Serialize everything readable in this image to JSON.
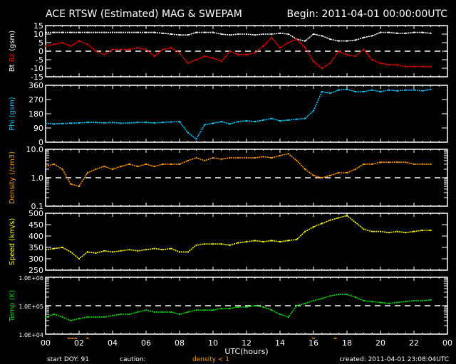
{
  "header": {
    "title": "ACE RTSW (Estimated) MAG & SWEPAM",
    "begin": "Begin: 2011-04-01 00:00:00UTC"
  },
  "footer": {
    "start_doy": "start DOY:  91",
    "caution_label": "caution:",
    "caution_text": "density < 1",
    "created": "created: 2011-04-01 23:08:04UTC"
  },
  "colors": {
    "bt": "#ffffff",
    "bz": "#ff0000",
    "phi": "#00c8ff",
    "density": "#ff9900",
    "speed": "#ffff00",
    "temp": "#00e000",
    "caution": "#ff9900"
  },
  "chart_data": {
    "type": "scatter",
    "x": {
      "label": "UTC(hours)",
      "range": [
        0,
        24
      ],
      "tick_labels": [
        "00",
        "02",
        "04",
        "06",
        "08",
        "10",
        "12",
        "14",
        "16",
        "18",
        "20",
        "22",
        "00"
      ],
      "step_hours": 0.5
    },
    "caution_marks_hours": [
      1.4,
      1.6,
      1.8,
      2.5,
      16.0,
      17.3
    ],
    "panels": [
      {
        "id": "mag",
        "ylabel_parts": [
          "Bt",
          "Bz",
          "(gsm)"
        ],
        "scale": "linear",
        "ylim": [
          -15,
          15
        ],
        "tick_labels": [
          "15",
          "10",
          "5",
          "0",
          "-5",
          "-10",
          "-15"
        ],
        "tick_values": [
          15,
          10,
          5,
          0,
          -5,
          -10,
          -15
        ],
        "reference_line": 0,
        "series": [
          {
            "name": "Bt",
            "color": "#ffffff",
            "values": [
              11,
              11,
              11,
              11,
              11,
              11,
              11,
              11,
              11,
              11,
              11,
              11,
              11,
              11,
              10.5,
              10,
              9.5,
              9.5,
              11,
              11,
              11,
              10,
              9.5,
              10,
              10,
              9.5,
              10,
              10,
              10.5,
              10,
              7,
              6,
              10,
              9,
              7,
              6,
              6,
              6.5,
              8,
              9,
              11,
              11,
              10.5,
              10.5,
              11,
              11,
              10.5
            ]
          },
          {
            "name": "Bz",
            "color": "#ff0000",
            "values": [
              3,
              4,
              5,
              3,
              6,
              4,
              0,
              -2,
              1,
              1,
              1,
              2,
              1,
              -3,
              1,
              2,
              -1,
              -7,
              -5,
              -3,
              -4,
              -6,
              0,
              -2,
              -2,
              -1,
              3,
              8,
              2,
              5,
              7,
              2,
              -6,
              -10,
              -7,
              0,
              -2,
              -3,
              1,
              -5,
              -7,
              -8,
              -8,
              -9,
              -9,
              -9,
              -9
            ]
          }
        ]
      },
      {
        "id": "phi",
        "ylabel_parts": [
          "Phi (gsm)"
        ],
        "scale": "linear",
        "ylim": [
          0,
          360
        ],
        "tick_labels": [
          "360",
          "270",
          "180",
          "90",
          "0"
        ],
        "tick_values": [
          360,
          270,
          180,
          90,
          0
        ],
        "series": [
          {
            "name": "Phi",
            "color": "#00c8ff",
            "values": [
              120,
              115,
              118,
              120,
              122,
              125,
              125,
              122,
              125,
              120,
              122,
              125,
              125,
              122,
              125,
              128,
              130,
              60,
              20,
              110,
              120,
              130,
              115,
              130,
              135,
              130,
              140,
              150,
              135,
              140,
              145,
              150,
              200,
              320,
              310,
              330,
              335,
              320,
              320,
              330,
              320,
              330,
              325,
              330,
              330,
              325,
              335
            ]
          }
        ]
      },
      {
        "id": "density",
        "ylabel_parts": [
          "Density (/cm3)"
        ],
        "scale": "log",
        "ylim": [
          0.1,
          10
        ],
        "tick_labels": [
          "10.0",
          "1.0",
          "0.1"
        ],
        "tick_values": [
          10,
          1,
          0.1
        ],
        "reference_line": 1,
        "series": [
          {
            "name": "Density",
            "color": "#ff9900",
            "values": [
              2.5,
              3,
              2,
              0.6,
              0.5,
              1.5,
              2,
              2.5,
              2,
              2.5,
              3,
              2.5,
              3,
              2.5,
              3,
              3,
              3,
              4,
              5,
              4,
              5,
              4.5,
              5,
              5,
              5,
              5,
              5.5,
              5,
              6,
              7,
              4,
              2,
              1.2,
              1,
              1.2,
              1.5,
              1.5,
              2,
              3,
              3,
              3.5,
              3.5,
              3.5,
              3.5,
              3,
              3,
              3
            ]
          }
        ]
      },
      {
        "id": "speed",
        "ylabel_parts": [
          "Speed (km/s)"
        ],
        "scale": "linear",
        "ylim": [
          250,
          500
        ],
        "tick_labels": [
          "500",
          "450",
          "400",
          "350",
          "300",
          "250"
        ],
        "tick_values": [
          500,
          450,
          400,
          350,
          300,
          250
        ],
        "series": [
          {
            "name": "Speed",
            "color": "#ffff00",
            "values": [
              340,
              345,
              350,
              330,
              300,
              330,
              325,
              335,
              330,
              335,
              340,
              335,
              340,
              345,
              340,
              345,
              330,
              330,
              360,
              365,
              365,
              365,
              360,
              370,
              375,
              380,
              375,
              380,
              375,
              380,
              385,
              420,
              440,
              455,
              470,
              480,
              490,
              460,
              430,
              420,
              420,
              415,
              420,
              415,
              420,
              425,
              425
            ]
          }
        ]
      },
      {
        "id": "temp",
        "ylabel_parts": [
          "Temp (K)"
        ],
        "scale": "log",
        "ylim": [
          10000,
          1000000
        ],
        "tick_labels": [
          "1.0E+06",
          "1.0E+05",
          "1.0E+04"
        ],
        "tick_values": [
          1000000,
          100000,
          10000
        ],
        "reference_line": 100000,
        "series": [
          {
            "name": "Temp",
            "color": "#00e000",
            "values": [
              40000,
              50000,
              40000,
              30000,
              35000,
              40000,
              40000,
              40000,
              45000,
              50000,
              50000,
              60000,
              70000,
              60000,
              60000,
              60000,
              50000,
              60000,
              70000,
              70000,
              70000,
              80000,
              80000,
              90000,
              90000,
              100000,
              90000,
              70000,
              50000,
              40000,
              100000,
              120000,
              150000,
              180000,
              220000,
              250000,
              250000,
              200000,
              150000,
              140000,
              130000,
              120000,
              130000,
              140000,
              150000,
              150000,
              160000
            ]
          }
        ]
      }
    ]
  }
}
